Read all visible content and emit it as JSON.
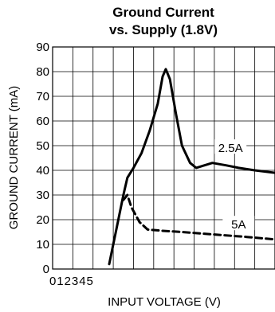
{
  "chart_data": {
    "type": "line",
    "title": [
      "Ground Current",
      "vs. Supply (1.8V)"
    ],
    "xlabel": "INPUT VOLTAGE (V)",
    "ylabel": "GROUND CURRENT (mA)",
    "xlim": [
      0,
      5.5
    ],
    "ylim": [
      0,
      90
    ],
    "x_tick_labels": [
      "0",
      "1",
      "2",
      "3",
      "4",
      "5"
    ],
    "y_tick_labels": [
      "0",
      "10",
      "20",
      "30",
      "40",
      "50",
      "60",
      "70",
      "80",
      "90"
    ],
    "grid": true,
    "series": [
      {
        "name": "2.5A",
        "style": "solid",
        "color": "#000000",
        "points": [
          [
            1.4,
            2
          ],
          [
            1.6,
            18
          ],
          [
            1.75,
            30
          ],
          [
            1.85,
            37
          ],
          [
            2.0,
            41
          ],
          [
            2.2,
            47
          ],
          [
            2.4,
            56
          ],
          [
            2.6,
            67
          ],
          [
            2.72,
            78
          ],
          [
            2.8,
            81
          ],
          [
            2.9,
            77
          ],
          [
            3.05,
            63
          ],
          [
            3.2,
            50
          ],
          [
            3.4,
            43
          ],
          [
            3.55,
            41
          ],
          [
            3.75,
            42
          ],
          [
            3.95,
            43
          ],
          [
            4.3,
            42
          ],
          [
            4.6,
            41
          ],
          [
            5.0,
            40
          ],
          [
            5.5,
            39
          ]
        ]
      },
      {
        "name": "5A",
        "style": "dashed",
        "color": "#000000",
        "points": [
          [
            1.75,
            28
          ],
          [
            1.85,
            30
          ],
          [
            1.95,
            25
          ],
          [
            2.15,
            19
          ],
          [
            2.35,
            16
          ],
          [
            2.7,
            15.5
          ],
          [
            3.2,
            15
          ],
          [
            4.0,
            14
          ],
          [
            4.8,
            13
          ],
          [
            5.5,
            12
          ]
        ]
      }
    ]
  }
}
